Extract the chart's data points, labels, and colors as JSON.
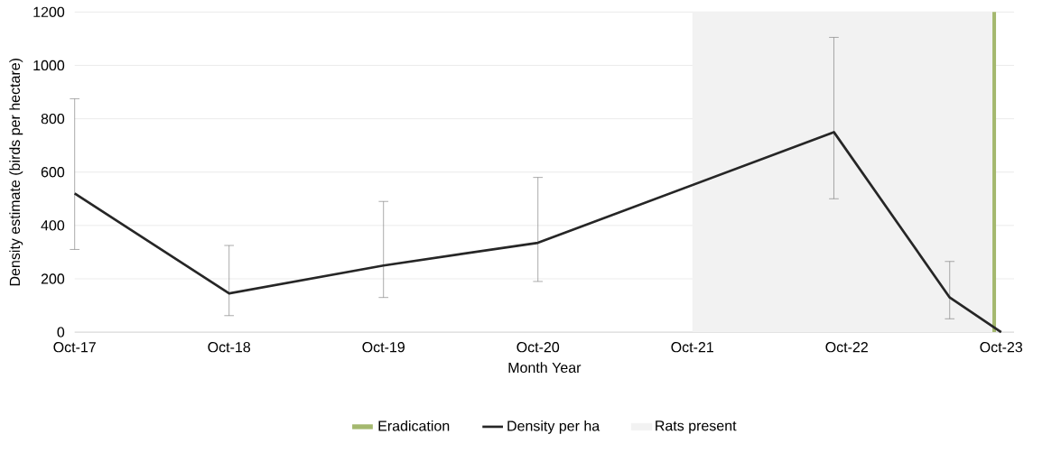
{
  "chart_data": {
    "type": "line",
    "xlabel": "Month Year",
    "ylabel": "Density estimate (birds per hectare)",
    "x": [
      "2017-10",
      "2018-10",
      "2019-10",
      "2020-10",
      "2022-09",
      "2023-06",
      "2023-10"
    ],
    "series": [
      {
        "name": "Density per ha",
        "color": "#262626",
        "values": [
          520,
          145,
          250,
          335,
          750,
          130,
          0
        ],
        "errors": [
          [
            310,
            875
          ],
          [
            62,
            325
          ],
          [
            130,
            490
          ],
          [
            190,
            580
          ],
          [
            500,
            1105
          ],
          [
            50,
            265
          ],
          null
        ]
      }
    ],
    "xlim": [
      "2017-10",
      "2023-11"
    ],
    "xticks": [
      {
        "value": "2017-10",
        "label": "Oct-17"
      },
      {
        "value": "2018-10",
        "label": "Oct-18"
      },
      {
        "value": "2019-10",
        "label": "Oct-19"
      },
      {
        "value": "2020-10",
        "label": "Oct-20"
      },
      {
        "value": "2021-10",
        "label": "Oct-21"
      },
      {
        "value": "2022-10",
        "label": "Oct-22"
      },
      {
        "value": "2023-10",
        "label": "Oct-23"
      }
    ],
    "ylim": [
      0,
      1200
    ],
    "yticks": [
      0,
      200,
      400,
      600,
      800,
      1000,
      1200
    ],
    "grid": "y",
    "legend": "bottom",
    "marker": "none",
    "ref_lines": [
      {
        "axis": "x",
        "value": "2023-09-15",
        "label": "Eradication",
        "color": "#a4b86e"
      }
    ],
    "bands": [
      {
        "axis": "x",
        "from": "2021-10",
        "to": "2023-09-15",
        "label": "Rats present",
        "color": "#f2f2f2"
      }
    ]
  }
}
